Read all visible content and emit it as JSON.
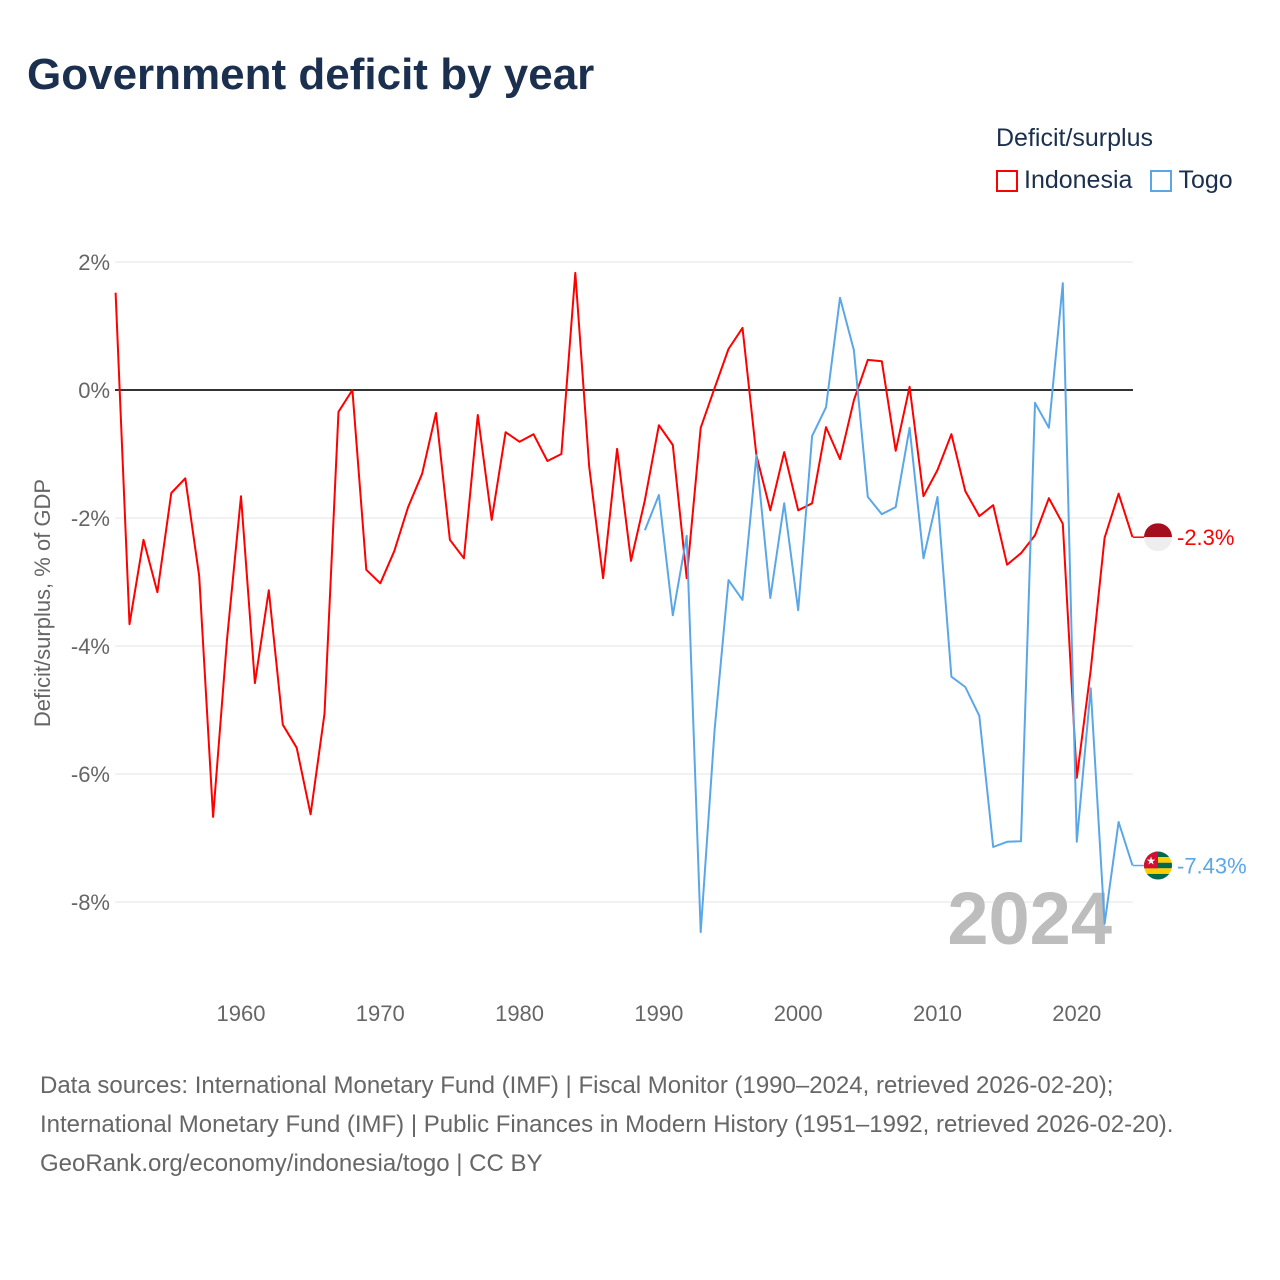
{
  "title": "Government deficit by year",
  "legend": {
    "title": "Deficit/surplus",
    "items": [
      {
        "label": "Indonesia",
        "color": "#ff0000"
      },
      {
        "label": "Togo",
        "color": "#5aa7e8"
      }
    ]
  },
  "chart_data": {
    "type": "line",
    "title": "Government deficit by year",
    "xlabel": "",
    "ylabel": "Deficit/surplus, % of GDP",
    "xlim": [
      1951,
      2024
    ],
    "ylim": [
      -9.3,
      2.2
    ],
    "xticks": [
      1960,
      1970,
      1980,
      1990,
      2000,
      2010,
      2020
    ],
    "yticks": [
      2,
      0,
      -2,
      -4,
      -6,
      -8
    ],
    "ytick_labels": [
      "2%",
      "0%",
      "-2%",
      "-4%",
      "-6%",
      "-8%"
    ],
    "xtick_labels": [
      "1960",
      "1970",
      "1980",
      "1990",
      "2000",
      "2010",
      "2020"
    ],
    "grid": true,
    "year_label": "2024",
    "series": [
      {
        "name": "Indonesia",
        "color": "#ff0000",
        "end_label": "-2.3%",
        "start_year": 1951,
        "values": [
          1.52,
          -3.66,
          -2.34,
          -3.16,
          -1.61,
          -1.38,
          -2.91,
          -6.67,
          -3.9,
          -1.66,
          -4.58,
          -3.13,
          -5.23,
          -5.59,
          -6.63,
          -5.06,
          -0.34,
          0,
          -2.81,
          -3.02,
          -2.52,
          -1.83,
          -1.31,
          -0.36,
          -2.34,
          -2.63,
          -0.39,
          -2.03,
          -0.66,
          -0.81,
          -0.69,
          -1.11,
          -1.0,
          1.83,
          -1.2,
          -2.94,
          -0.92,
          -2.67,
          -1.72,
          -0.55,
          -0.86,
          -2.94,
          -0.59,
          0.03,
          0.64,
          0.97,
          -1.02,
          -1.88,
          -0.97,
          -1.88,
          -1.77,
          -0.58,
          -1.08,
          -0.16,
          0.47,
          0.45,
          -0.95,
          0.05,
          -1.66,
          -1.25,
          -0.69,
          -1.58,
          -1.97,
          -1.8,
          -2.73,
          -2.55,
          -2.27,
          -1.69,
          -2.09,
          -6.06,
          -4.38,
          -2.31,
          -1.62,
          -2.3
        ]
      },
      {
        "name": "Togo",
        "color": "#5aa7e8",
        "end_label": "-7.43%",
        "start_year": 1989,
        "values": [
          -2.19,
          -1.64,
          -3.52,
          -2.28,
          -8.47,
          -5.31,
          -2.97,
          -3.28,
          -1.02,
          -3.25,
          -1.77,
          -3.44,
          -0.72,
          -0.27,
          1.44,
          0.62,
          -1.67,
          -1.94,
          -1.83,
          -0.59,
          -2.63,
          -1.67,
          -4.48,
          -4.64,
          -5.09,
          -7.14,
          -7.06,
          -7.05,
          -0.2,
          -0.59,
          1.67,
          -7.06,
          -4.66,
          -8.34,
          -6.75,
          -7.43
        ]
      }
    ]
  },
  "footer": {
    "sources": "Data sources: International Monetary Fund (IMF) | Fiscal Monitor (1990–2024, retrieved 2026-02-20); International Monetary Fund (IMF) | Public Finances in Modern History (1951–1992, retrieved 2026-02-20).",
    "credit": "GeoRank.org/economy/indonesia/togo | CC BY"
  }
}
